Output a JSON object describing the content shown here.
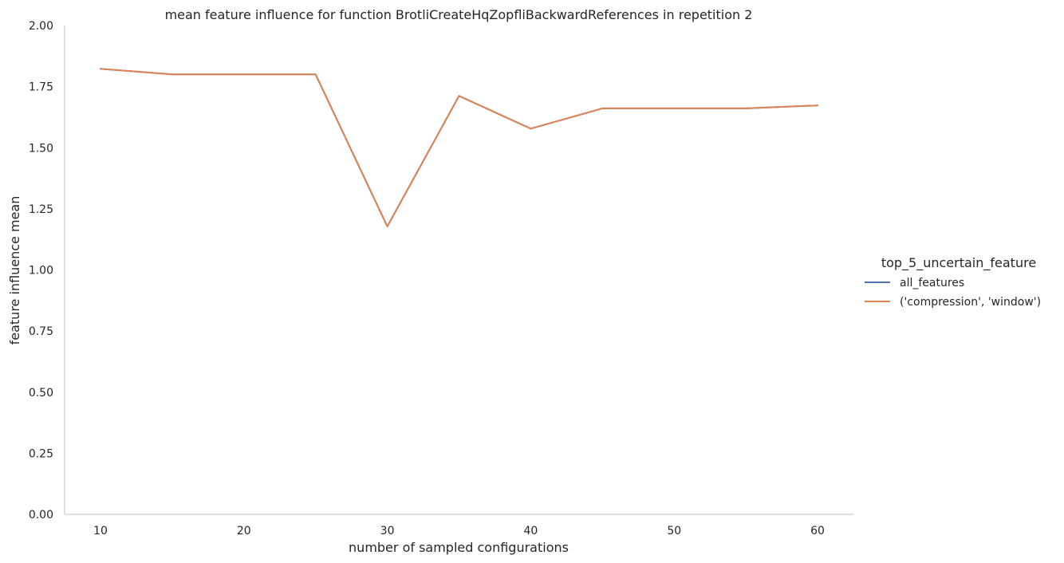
{
  "chart_data": {
    "type": "line",
    "title": "mean feature influence for function BrotliCreateHqZopfliBackwardReferences in repetition 2",
    "xlabel": "number of sampled configurations",
    "ylabel": "feature influence mean",
    "xlim": [
      7.5,
      62.5
    ],
    "ylim": [
      0,
      2
    ],
    "xticks": [
      10,
      20,
      30,
      40,
      50,
      60
    ],
    "yticks": [
      "0.00",
      "0.25",
      "0.50",
      "0.75",
      "1.00",
      "1.25",
      "1.50",
      "1.75",
      "2.00"
    ],
    "grid": false,
    "legend_position": "right",
    "legend_title": "top_5_uncertain_feature",
    "x": [
      10,
      15,
      20,
      25,
      30,
      35,
      40,
      45,
      50,
      55,
      60
    ],
    "series": [
      {
        "name": "all_features",
        "color": "#4c72b0",
        "values": [
          1.823,
          1.8,
          1.8,
          1.8,
          1.178,
          1.712,
          1.578,
          1.661,
          1.661,
          1.661,
          1.673
        ]
      },
      {
        "name": "('compression', 'window')",
        "color": "#dd8452",
        "values": [
          1.823,
          1.8,
          1.8,
          1.8,
          1.178,
          1.712,
          1.578,
          1.661,
          1.661,
          1.661,
          1.673
        ]
      }
    ]
  }
}
